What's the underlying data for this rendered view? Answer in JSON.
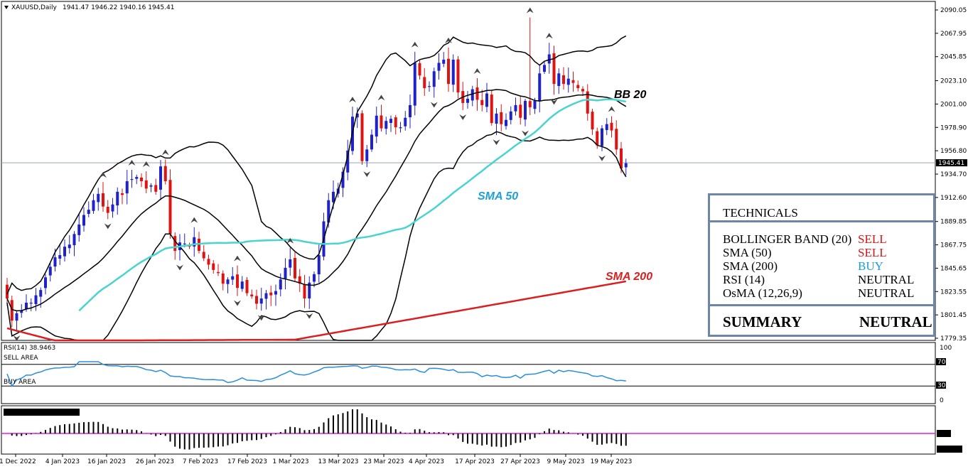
{
  "header": {
    "symbol": "XAUUSD,Daily",
    "ohlc": "1941.47 1946.22 1940.16 1945.41"
  },
  "price_axis": {
    "ticks": [
      "2090.05",
      "2067.95",
      "2045.85",
      "2023.10",
      "2001.00",
      "1978.90",
      "1956.80",
      "1934.70",
      "1912.60",
      "1889.85",
      "1867.75",
      "1845.65",
      "1823.55",
      "1801.45",
      "1779.35"
    ],
    "current": "1945.41"
  },
  "chart_labels": {
    "bb": "BB 20",
    "sma50": "SMA 50",
    "sma200": "SMA 200"
  },
  "colors": {
    "bull": "#1f22c8",
    "bear": "#e01212",
    "sma50": "#49d4d0",
    "sma200": "#dc1e1e",
    "bb": "#000000",
    "rsi": "#2a8ee0",
    "osma_zero": "#e020e0"
  },
  "rsi": {
    "title": "RSI(14) 38.9463",
    "sell_label": "SELL AREA",
    "buy_label": "BUY AREA",
    "levels": {
      "top": "100",
      "sell": "70",
      "buy": "30",
      "bottom": "0"
    }
  },
  "technicals": {
    "title": "TECHNICALS",
    "rows": [
      {
        "name": "BOLLINGER BAND (20)",
        "signal": "SELL",
        "color": "#e01212"
      },
      {
        "name": "SMA (50)",
        "signal": "SELL",
        "color": "#e01212"
      },
      {
        "name": "SMA (200)",
        "signal": "BUY",
        "color": "#1a9de0"
      },
      {
        "name": "RSI (14)",
        "signal": "NEUTRAL",
        "color": "#000000"
      },
      {
        "name": "OsMA (12,26,9)",
        "signal": "NEUTRAL",
        "color": "#000000"
      }
    ],
    "summary_label": "SUMMARY",
    "summary_value": "NEUTRAL"
  },
  "chart_data": {
    "type": "candlestick",
    "title": "XAUUSD,Daily",
    "ylim": [
      1779.35,
      2092
    ],
    "x_axis_labels": [
      "21 Dec 2022",
      "4 Jan 2023",
      "16 Jan 2023",
      "26 Jan 2023",
      "7 Feb 2023",
      "17 Feb 2023",
      "1 Mar 2023",
      "13 Mar 2023",
      "23 Mar 2023",
      "4 Apr 2023",
      "17 Apr 2023",
      "27 Apr 2023",
      "9 May 2023",
      "19 May 2023"
    ],
    "close": [
      1817,
      1796,
      1803,
      1806,
      1813,
      1813,
      1820,
      1825,
      1837,
      1847,
      1856,
      1858,
      1866,
      1868,
      1878,
      1887,
      1896,
      1901,
      1910,
      1916,
      1904,
      1898,
      1906,
      1918,
      1915,
      1928,
      1930,
      1932,
      1928,
      1921,
      1924,
      1918,
      1942,
      1928,
      1878,
      1862,
      1870,
      1869,
      1866,
      1875,
      1862,
      1855,
      1849,
      1844,
      1841,
      1831,
      1835,
      1838,
      1827,
      1833,
      1822,
      1819,
      1812,
      1817,
      1822,
      1820,
      1824,
      1835,
      1846,
      1854,
      1836,
      1831,
      1817,
      1832,
      1840,
      1858,
      1890,
      1910,
      1918,
      1921,
      1937,
      1957,
      1989,
      1992,
      1947,
      1958,
      1972,
      1990,
      1978,
      1985,
      1987,
      1979,
      1979,
      1988,
      2000,
      2040,
      2028,
      2016,
      2018,
      2032,
      2040,
      2043,
      2020,
      2043,
      2012,
      2002,
      2006,
      2015,
      2005,
      2000,
      2011,
      1983,
      1992,
      1982,
      1986,
      1994,
      2000,
      1988,
      2004,
      1998,
      2004,
      2030,
      2038,
      2048,
      2020,
      2030,
      2020,
      2025,
      2021,
      2016,
      2013,
      1992,
      1977,
      1962,
      1978,
      1982,
      1976,
      1958,
      1940,
      1945
    ]
  }
}
